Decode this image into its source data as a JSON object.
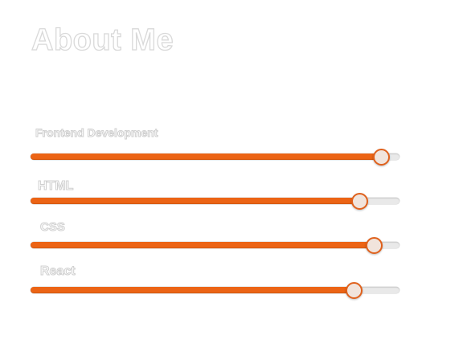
{
  "page": {
    "title": "About Me"
  },
  "colors": {
    "accent": "#ec6415",
    "thumb_border": "#e0611c",
    "thumb_fill": "#f1e4dc",
    "track": "#e9e9e9",
    "text_outline": "#d9d9d9"
  },
  "skills": [
    {
      "label": "Frontend Development",
      "level_percent": 95
    },
    {
      "label": "HTML",
      "level_percent": 89
    },
    {
      "label": "CSS",
      "level_percent": 93
    },
    {
      "label": "React",
      "level_percent": 87.5
    }
  ]
}
